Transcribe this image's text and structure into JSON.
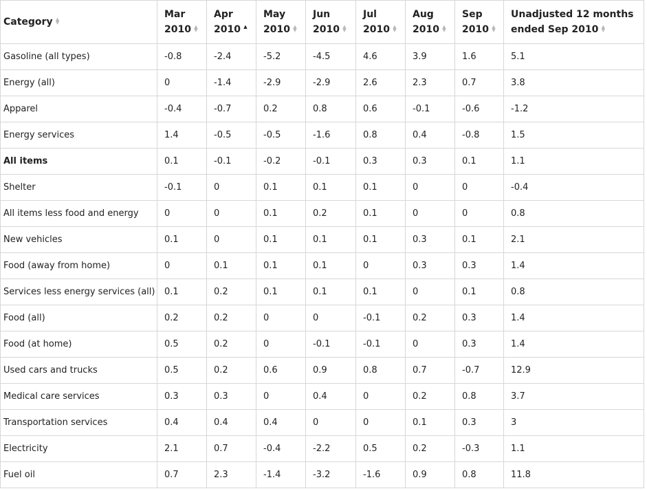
{
  "table": {
    "columns": [
      {
        "line1": "Category",
        "line2": "",
        "sort": "none"
      },
      {
        "line1": "Mar",
        "line2": "2010",
        "sort": "none"
      },
      {
        "line1": "Apr",
        "line2": "2010",
        "sort": "asc"
      },
      {
        "line1": "May",
        "line2": "2010",
        "sort": "none"
      },
      {
        "line1": "Jun",
        "line2": "2010",
        "sort": "none"
      },
      {
        "line1": "Jul",
        "line2": "2010",
        "sort": "none"
      },
      {
        "line1": "Aug",
        "line2": "2010",
        "sort": "none"
      },
      {
        "line1": "Sep",
        "line2": "2010",
        "sort": "none"
      },
      {
        "line1": "Unadjusted 12 months",
        "line2": "ended Sep 2010",
        "sort": "none"
      }
    ],
    "rows": [
      {
        "category": "Gasoline (all types)",
        "bold": false,
        "values": [
          "-0.8",
          "-2.4",
          "-5.2",
          "-4.5",
          "4.6",
          "3.9",
          "1.6",
          "5.1"
        ]
      },
      {
        "category": "Energy (all)",
        "bold": false,
        "values": [
          "0",
          "-1.4",
          "-2.9",
          "-2.9",
          "2.6",
          "2.3",
          "0.7",
          "3.8"
        ]
      },
      {
        "category": "Apparel",
        "bold": false,
        "values": [
          "-0.4",
          "-0.7",
          "0.2",
          "0.8",
          "0.6",
          "-0.1",
          "-0.6",
          "-1.2"
        ]
      },
      {
        "category": "Energy services",
        "bold": false,
        "values": [
          "1.4",
          "-0.5",
          "-0.5",
          "-1.6",
          "0.8",
          "0.4",
          "-0.8",
          "1.5"
        ]
      },
      {
        "category": "All items",
        "bold": true,
        "values": [
          "0.1",
          "-0.1",
          "-0.2",
          "-0.1",
          "0.3",
          "0.3",
          "0.1",
          "1.1"
        ]
      },
      {
        "category": "Shelter",
        "bold": false,
        "values": [
          "-0.1",
          "0",
          "0.1",
          "0.1",
          "0.1",
          "0",
          "0",
          "-0.4"
        ]
      },
      {
        "category": "All items less food and energy",
        "bold": false,
        "values": [
          "0",
          "0",
          "0.1",
          "0.2",
          "0.1",
          "0",
          "0",
          "0.8"
        ]
      },
      {
        "category": "New vehicles",
        "bold": false,
        "values": [
          "0.1",
          "0",
          "0.1",
          "0.1",
          "0.1",
          "0.3",
          "0.1",
          "2.1"
        ]
      },
      {
        "category": "Food (away from home)",
        "bold": false,
        "values": [
          "0",
          "0.1",
          "0.1",
          "0.1",
          "0",
          "0.3",
          "0.3",
          "1.4"
        ]
      },
      {
        "category": "Services less energy services (all)",
        "bold": false,
        "values": [
          "0.1",
          "0.2",
          "0.1",
          "0.1",
          "0.1",
          "0",
          "0.1",
          "0.8"
        ]
      },
      {
        "category": "Food (all)",
        "bold": false,
        "values": [
          "0.2",
          "0.2",
          "0",
          "0",
          "-0.1",
          "0.2",
          "0.3",
          "1.4"
        ]
      },
      {
        "category": "Food (at home)",
        "bold": false,
        "values": [
          "0.5",
          "0.2",
          "0",
          "-0.1",
          "-0.1",
          "0",
          "0.3",
          "1.4"
        ]
      },
      {
        "category": "Used cars and trucks",
        "bold": false,
        "values": [
          "0.5",
          "0.2",
          "0.6",
          "0.9",
          "0.8",
          "0.7",
          "-0.7",
          "12.9"
        ]
      },
      {
        "category": "Medical care services",
        "bold": false,
        "values": [
          "0.3",
          "0.3",
          "0",
          "0.4",
          "0",
          "0.2",
          "0.8",
          "3.7"
        ]
      },
      {
        "category": "Transportation services",
        "bold": false,
        "values": [
          "0.4",
          "0.4",
          "0.4",
          "0",
          "0",
          "0.1",
          "0.3",
          "3"
        ]
      },
      {
        "category": "Electricity",
        "bold": false,
        "values": [
          "2.1",
          "0.7",
          "-0.4",
          "-2.2",
          "0.5",
          "0.2",
          "-0.3",
          "1.1"
        ]
      },
      {
        "category": "Fuel oil",
        "bold": false,
        "values": [
          "0.7",
          "2.3",
          "-1.4",
          "-3.2",
          "-1.6",
          "0.9",
          "0.8",
          "11.8"
        ]
      }
    ]
  }
}
